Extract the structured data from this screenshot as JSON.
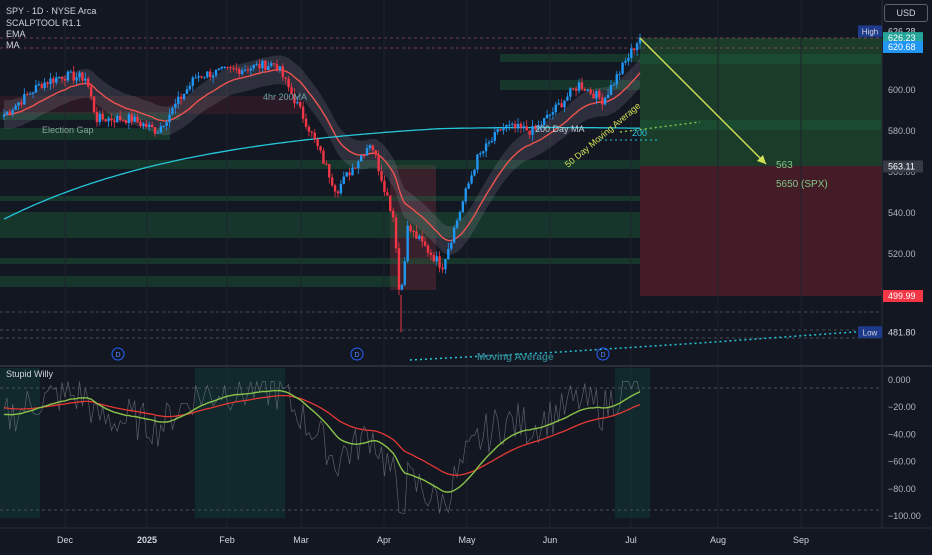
{
  "header": {
    "symbol_line": "SPY · 1D · NYSE Arca",
    "indicators": [
      "SCALPTOOL R1.1",
      "EMA",
      "MA"
    ],
    "currency": "USD"
  },
  "price_axis": {
    "ticks": [
      "600.00",
      "580.00",
      "560.00",
      "540.00",
      "520.00",
      "500.00"
    ],
    "labels": [
      {
        "text": "High",
        "value": 628.6,
        "color": "#1e3a8a",
        "style": "tag"
      },
      {
        "text": "626.28",
        "value": 628.6,
        "color": "#131722",
        "style": "plain"
      },
      {
        "text": "626.23",
        "value": 625.3,
        "color": "#26a69a",
        "style": "box"
      },
      {
        "text": "620.68",
        "value": 621.0,
        "color": "#2196f3",
        "style": "box"
      },
      {
        "text": "563.11",
        "value": 562.7,
        "color": "#363a45",
        "style": "box"
      },
      {
        "text": "499.99",
        "value": 499.5,
        "color": "#f23645",
        "style": "box"
      },
      {
        "text": "Low",
        "value": 481.8,
        "color": "#1e3a8a",
        "style": "tag"
      },
      {
        "text": "481.80",
        "value": 481.8,
        "color": "#131722",
        "style": "plain"
      }
    ]
  },
  "time_axis": [
    "Dec",
    "2025",
    "Feb",
    "Mar",
    "Apr",
    "May",
    "Jun",
    "Jul",
    "Aug",
    "Sep"
  ],
  "annotations": {
    "election_gap": "Election Gap",
    "hr4_ma": "4hr 200MA",
    "dma200": "200 Day MA",
    "ma50": "50 Day Moving Average",
    "ma200": "200",
    "target_563": "563",
    "target_spx": "5650 (SPX)",
    "moving_average": "Moving Average",
    "dividend_marker": "D"
  },
  "oscillator": {
    "title": "Stupid Willy",
    "ticks": [
      "0.000",
      "−20.00",
      "−40.00",
      "−60.00",
      "−80.00",
      "−100.00"
    ]
  },
  "colors": {
    "background": "#131722",
    "up_candle": "#2196f3",
    "down_candle": "#f23645",
    "ema_line": "#ef5350",
    "ma200_line": "#26c6da",
    "projection_arrow": "#d4e157",
    "oscillator_fast": "#8bc34a",
    "oscillator_slow": "#e53935"
  },
  "chart_data": {
    "type": "candlestick",
    "title": "SPY · 1D · NYSE Arca",
    "x_axis": [
      "Dec",
      "2025",
      "Feb",
      "Mar",
      "Apr",
      "May",
      "Jun",
      "Jul",
      "Aug",
      "Sep"
    ],
    "y_range": [
      478,
      630
    ],
    "oscillator_range": [
      -100,
      0
    ],
    "price_path": [
      {
        "x": "Nov 18",
        "close": 588
      },
      {
        "x": "Nov 29",
        "close": 603
      },
      {
        "x": "Dec 6",
        "close": 607
      },
      {
        "x": "Dec 16",
        "close": 606
      },
      {
        "x": "Dec 18",
        "close": 586
      },
      {
        "x": "Jan 2",
        "close": 586
      },
      {
        "x": "Jan 10",
        "close": 580
      },
      {
        "x": "Jan 24",
        "close": 607
      },
      {
        "x": "Feb 19",
        "close": 613
      },
      {
        "x": "Mar 3",
        "close": 583
      },
      {
        "x": "Mar 13",
        "close": 551
      },
      {
        "x": "Mar 25",
        "close": 575
      },
      {
        "x": "Apr 3",
        "close": 536
      },
      {
        "x": "Apr 8",
        "close": 496
      },
      {
        "x": "Apr 9",
        "close": 533
      },
      {
        "x": "Apr 21",
        "close": 514
      },
      {
        "x": "May 2",
        "close": 566
      },
      {
        "x": "May 12",
        "close": 582
      },
      {
        "x": "May 23",
        "close": 580
      },
      {
        "x": "Jun 12",
        "close": 603
      },
      {
        "x": "Jun 20",
        "close": 595
      },
      {
        "x": "Jun 30",
        "close": 617
      },
      {
        "x": "Jul 3",
        "close": 626
      }
    ],
    "levels": {
      "high": 626.28,
      "low": 481.8,
      "last": 626.23,
      "ema": 620.68,
      "target": 563.11,
      "stop": 499.99
    },
    "target_annotation": {
      "from_value": 626,
      "to_value": 563,
      "labels": [
        "563",
        "5650 (SPX)"
      ]
    }
  }
}
